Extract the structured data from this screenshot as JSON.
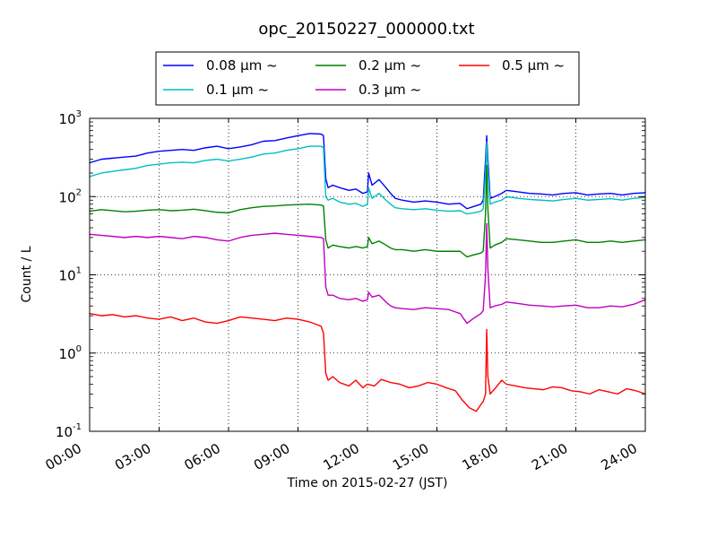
{
  "chart_data": {
    "type": "line",
    "title": "opc_20150227_000000.txt",
    "xlabel": "Time on 2015-02-27 (JST)",
    "ylabel": "Count / L",
    "x_unit": "hours",
    "xlim": [
      0,
      24
    ],
    "ylim": [
      0.1,
      1000
    ],
    "y_scale": "log",
    "grid": true,
    "legend_position": "top",
    "x_tick_labels": [
      "00:00",
      "03:00",
      "06:00",
      "09:00",
      "12:00",
      "15:00",
      "18:00",
      "21:00",
      "24:00"
    ],
    "y_tick_labels": [
      {
        "base": "10",
        "exp": "-1"
      },
      {
        "base": "10",
        "exp": "0"
      },
      {
        "base": "10",
        "exp": "1"
      },
      {
        "base": "10",
        "exp": "2"
      },
      {
        "base": "10",
        "exp": "3"
      }
    ],
    "series": [
      {
        "name": "0.08 μm ~",
        "color": "#0000ff",
        "x": [
          0,
          0.5,
          1,
          1.5,
          2,
          2.5,
          3,
          3.5,
          4,
          4.5,
          5,
          5.5,
          6,
          6.5,
          7,
          7.5,
          8,
          8.5,
          9,
          9.5,
          10,
          10.1,
          10.2,
          10.3,
          10.5,
          10.8,
          11.2,
          11.5,
          11.8,
          12,
          12.05,
          12.2,
          12.5,
          12.8,
          13,
          13.2,
          13.5,
          14,
          14.5,
          15,
          15.5,
          16,
          16.3,
          16.6,
          16.9,
          17.0,
          17.1,
          17.15,
          17.2,
          17.3,
          17.5,
          17.8,
          18,
          18.5,
          19,
          19.5,
          20,
          20.5,
          21,
          21.5,
          22,
          22.5,
          23,
          23.5,
          24
        ],
        "y": [
          270,
          300,
          310,
          320,
          330,
          360,
          380,
          390,
          400,
          390,
          420,
          440,
          410,
          430,
          460,
          510,
          520,
          560,
          600,
          640,
          630,
          600,
          170,
          130,
          140,
          130,
          120,
          125,
          110,
          115,
          200,
          140,
          165,
          130,
          110,
          95,
          90,
          85,
          88,
          85,
          80,
          82,
          70,
          75,
          80,
          90,
          300,
          600,
          300,
          95,
          100,
          110,
          120,
          115,
          110,
          108,
          105,
          110,
          112,
          105,
          108,
          110,
          105,
          110,
          112
        ]
      },
      {
        "name": "0.1 μm ~",
        "color": "#00bfbf",
        "x": [
          0,
          0.5,
          1,
          1.5,
          2,
          2.5,
          3,
          3.5,
          4,
          4.5,
          5,
          5.5,
          6,
          6.5,
          7,
          7.5,
          8,
          8.5,
          9,
          9.5,
          10,
          10.1,
          10.2,
          10.3,
          10.5,
          10.8,
          11.2,
          11.5,
          11.8,
          12,
          12.05,
          12.2,
          12.5,
          12.8,
          13,
          13.2,
          13.5,
          14,
          14.5,
          15,
          15.5,
          16,
          16.3,
          16.6,
          16.9,
          17.0,
          17.1,
          17.15,
          17.2,
          17.3,
          17.5,
          17.8,
          18,
          18.5,
          19,
          19.5,
          20,
          20.5,
          21,
          21.5,
          22,
          22.5,
          23,
          23.5,
          24
        ],
        "y": [
          180,
          200,
          210,
          220,
          230,
          250,
          260,
          270,
          275,
          270,
          290,
          300,
          285,
          300,
          320,
          350,
          360,
          390,
          410,
          440,
          440,
          420,
          100,
          90,
          95,
          85,
          80,
          82,
          75,
          80,
          130,
          95,
          110,
          90,
          80,
          72,
          70,
          68,
          70,
          67,
          65,
          66,
          60,
          62,
          65,
          70,
          200,
          500,
          220,
          80,
          85,
          90,
          100,
          95,
          92,
          90,
          88,
          92,
          95,
          90,
          92,
          94,
          90,
          95,
          98
        ]
      },
      {
        "name": "0.2 μm ~",
        "color": "#008000",
        "x": [
          0,
          0.5,
          1,
          1.5,
          2,
          2.5,
          3,
          3.5,
          4,
          4.5,
          5,
          5.5,
          6,
          6.5,
          7,
          7.5,
          8,
          8.5,
          9,
          9.5,
          10,
          10.1,
          10.2,
          10.3,
          10.5,
          10.8,
          11.2,
          11.5,
          11.8,
          12,
          12.05,
          12.2,
          12.5,
          12.8,
          13,
          13.2,
          13.5,
          14,
          14.5,
          15,
          15.5,
          16,
          16.3,
          16.6,
          16.9,
          17.0,
          17.1,
          17.15,
          17.2,
          17.3,
          17.5,
          17.8,
          18,
          18.5,
          19,
          19.5,
          20,
          20.5,
          21,
          21.5,
          22,
          22.5,
          23,
          23.5,
          24
        ],
        "y": [
          65,
          68,
          66,
          64,
          65,
          67,
          68,
          66,
          67,
          69,
          66,
          63,
          62,
          68,
          72,
          75,
          76,
          78,
          79,
          80,
          78,
          76,
          28,
          22,
          24,
          23,
          22,
          23,
          22,
          23,
          30,
          25,
          27,
          24,
          22,
          21,
          21,
          20,
          21,
          20,
          20,
          20,
          17,
          18,
          19,
          20,
          60,
          250,
          70,
          22,
          24,
          26,
          29,
          28,
          27,
          26,
          26,
          27,
          28,
          26,
          26,
          27,
          26,
          27,
          28
        ]
      },
      {
        "name": "0.3 μm ~",
        "color": "#bf00bf",
        "x": [
          0,
          0.5,
          1,
          1.5,
          2,
          2.5,
          3,
          3.5,
          4,
          4.5,
          5,
          5.5,
          6,
          6.5,
          7,
          7.5,
          8,
          8.5,
          9,
          9.5,
          10,
          10.1,
          10.2,
          10.3,
          10.5,
          10.8,
          11.2,
          11.5,
          11.8,
          12,
          12.05,
          12.2,
          12.5,
          12.8,
          13,
          13.2,
          13.5,
          14,
          14.5,
          15,
          15.5,
          16,
          16.3,
          16.6,
          16.9,
          17.0,
          17.1,
          17.15,
          17.2,
          17.3,
          17.5,
          17.8,
          18,
          18.5,
          19,
          19.5,
          20,
          20.5,
          21,
          21.5,
          22,
          22.5,
          23,
          23.5,
          24
        ],
        "y": [
          33,
          32,
          31,
          30,
          31,
          30,
          31,
          30,
          29,
          31,
          30,
          28,
          27,
          30,
          32,
          33,
          34,
          33,
          32,
          31,
          30,
          29,
          7,
          5.5,
          5.5,
          5,
          4.8,
          5,
          4.6,
          4.8,
          6,
          5.2,
          5.5,
          4.5,
          4,
          3.8,
          3.7,
          3.6,
          3.8,
          3.7,
          3.6,
          3.2,
          2.4,
          2.8,
          3.2,
          3.5,
          10,
          45,
          12,
          3.8,
          4,
          4.2,
          4.5,
          4.3,
          4.1,
          4,
          3.9,
          4,
          4.1,
          3.8,
          3.8,
          4,
          3.9,
          4.2,
          4.8
        ]
      },
      {
        "name": "0.5 μm ~",
        "color": "#ff0000",
        "x": [
          0,
          0.5,
          1,
          1.5,
          2,
          2.5,
          3,
          3.5,
          4,
          4.5,
          5,
          5.5,
          6,
          6.5,
          7,
          7.5,
          8,
          8.5,
          9,
          9.5,
          10,
          10.1,
          10.2,
          10.3,
          10.5,
          10.8,
          11.2,
          11.5,
          11.8,
          12,
          12.3,
          12.6,
          13,
          13.4,
          13.8,
          14.2,
          14.6,
          15,
          15.4,
          15.8,
          16.1,
          16.4,
          16.7,
          16.9,
          17.0,
          17.1,
          17.15,
          17.2,
          17.3,
          17.5,
          17.8,
          18,
          18.4,
          18.8,
          19.2,
          19.6,
          20,
          20.4,
          20.8,
          21.2,
          21.6,
          22,
          22.4,
          22.8,
          23.2,
          23.6,
          24
        ],
        "y": [
          3.2,
          3.0,
          3.1,
          2.9,
          3.0,
          2.8,
          2.7,
          2.9,
          2.6,
          2.8,
          2.5,
          2.4,
          2.6,
          2.9,
          2.8,
          2.7,
          2.6,
          2.8,
          2.7,
          2.5,
          2.2,
          1.8,
          0.55,
          0.45,
          0.5,
          0.42,
          0.38,
          0.45,
          0.36,
          0.4,
          0.38,
          0.46,
          0.42,
          0.4,
          0.36,
          0.38,
          0.42,
          0.4,
          0.36,
          0.33,
          0.25,
          0.2,
          0.18,
          0.22,
          0.24,
          0.3,
          2.0,
          0.5,
          0.3,
          0.35,
          0.45,
          0.4,
          0.38,
          0.36,
          0.35,
          0.34,
          0.37,
          0.36,
          0.33,
          0.32,
          0.3,
          0.34,
          0.32,
          0.3,
          0.35,
          0.33,
          0.3
        ]
      }
    ]
  }
}
